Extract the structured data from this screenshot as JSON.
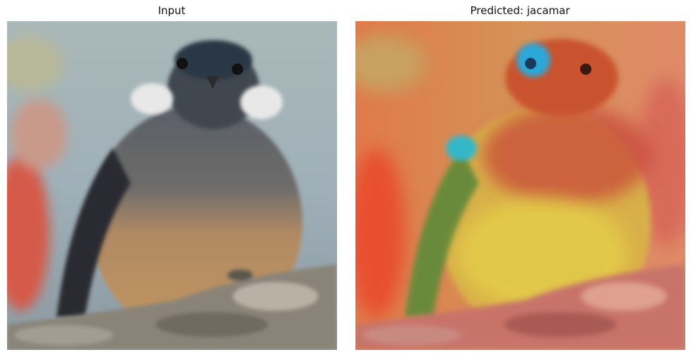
{
  "figure": {
    "panels": [
      {
        "title": "Input",
        "content": "photo of a small bird perched on a rock"
      },
      {
        "title": "Predicted: jacamar",
        "content": "same photo with Grad-CAM style heatmap overlay"
      }
    ]
  },
  "colors": {
    "background": "#ffffff",
    "heat_hot": "#e0503a",
    "heat_warm": "#e8c040",
    "heat_cool": "#30b8c8"
  }
}
